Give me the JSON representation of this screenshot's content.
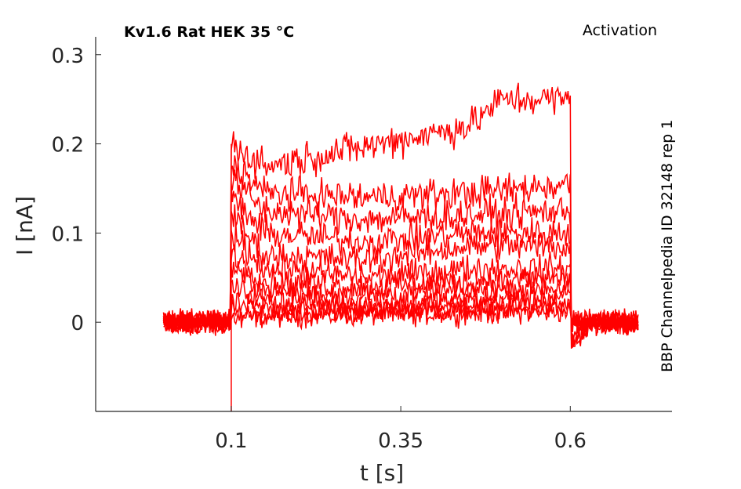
{
  "chart_data": {
    "type": "line",
    "title": "Kv1.6  Rat  HEK  35 °C",
    "subtitle": "Activation",
    "side_label": "BBP Channelpedia ID 32148 rep 1",
    "xlabel": "t [s]",
    "ylabel": "I [nA]",
    "xlim": [
      -0.1,
      0.75
    ],
    "ylim": [
      -0.1,
      0.32
    ],
    "xticks": [
      0.1,
      0.35,
      0.6
    ],
    "xtick_labels": [
      "0.1",
      "0.35",
      "0.6"
    ],
    "yticks": [
      0,
      0.1,
      0.2,
      0.3
    ],
    "ytick_labels": [
      "0",
      "0.1",
      "0.2",
      "0.3"
    ],
    "grid": false,
    "line_color": "#ff0000",
    "x_range_data": [
      0.0,
      0.7
    ],
    "pulse_window": [
      0.1,
      0.6
    ],
    "series": [
      {
        "values": [
          [
            0.1,
            0.005
          ],
          [
            0.15,
            0.006
          ],
          [
            0.3,
            0.008
          ],
          [
            0.45,
            0.01
          ],
          [
            0.6,
            0.012
          ]
        ]
      },
      {
        "values": [
          [
            0.1,
            0.01
          ],
          [
            0.15,
            0.01
          ],
          [
            0.3,
            0.012
          ],
          [
            0.45,
            0.014
          ],
          [
            0.6,
            0.015
          ]
        ]
      },
      {
        "values": [
          [
            0.1,
            0.02
          ],
          [
            0.15,
            0.015
          ],
          [
            0.3,
            0.015
          ],
          [
            0.45,
            0.018
          ],
          [
            0.6,
            0.02
          ]
        ]
      },
      {
        "values": [
          [
            0.1,
            0.04
          ],
          [
            0.15,
            0.025
          ],
          [
            0.3,
            0.02
          ],
          [
            0.45,
            0.025
          ],
          [
            0.6,
            0.03
          ]
        ]
      },
      {
        "values": [
          [
            0.1,
            0.06
          ],
          [
            0.15,
            0.035
          ],
          [
            0.3,
            0.03
          ],
          [
            0.45,
            0.035
          ],
          [
            0.6,
            0.04
          ]
        ]
      },
      {
        "values": [
          [
            0.1,
            0.08
          ],
          [
            0.15,
            0.045
          ],
          [
            0.3,
            0.04
          ],
          [
            0.45,
            0.045
          ],
          [
            0.6,
            0.05
          ]
        ]
      },
      {
        "values": [
          [
            0.1,
            0.1
          ],
          [
            0.15,
            0.06
          ],
          [
            0.3,
            0.05
          ],
          [
            0.45,
            0.06
          ],
          [
            0.6,
            0.06
          ]
        ]
      },
      {
        "values": [
          [
            0.1,
            0.12
          ],
          [
            0.15,
            0.075
          ],
          [
            0.3,
            0.07
          ],
          [
            0.45,
            0.085
          ],
          [
            0.6,
            0.085
          ]
        ]
      },
      {
        "values": [
          [
            0.1,
            0.14
          ],
          [
            0.15,
            0.1
          ],
          [
            0.3,
            0.09
          ],
          [
            0.45,
            0.1
          ],
          [
            0.6,
            0.1
          ]
        ]
      },
      {
        "values": [
          [
            0.1,
            0.16
          ],
          [
            0.15,
            0.125
          ],
          [
            0.3,
            0.115
          ],
          [
            0.45,
            0.12
          ],
          [
            0.6,
            0.125
          ]
        ]
      },
      {
        "values": [
          [
            0.1,
            0.18
          ],
          [
            0.15,
            0.145
          ],
          [
            0.3,
            0.14
          ],
          [
            0.45,
            0.145
          ],
          [
            0.6,
            0.155
          ]
        ]
      },
      {
        "values": [
          [
            0.1,
            0.2
          ],
          [
            0.15,
            0.175
          ],
          [
            0.25,
            0.19
          ],
          [
            0.35,
            0.205
          ],
          [
            0.45,
            0.22
          ],
          [
            0.5,
            0.25
          ],
          [
            0.6,
            0.25
          ]
        ]
      }
    ]
  }
}
